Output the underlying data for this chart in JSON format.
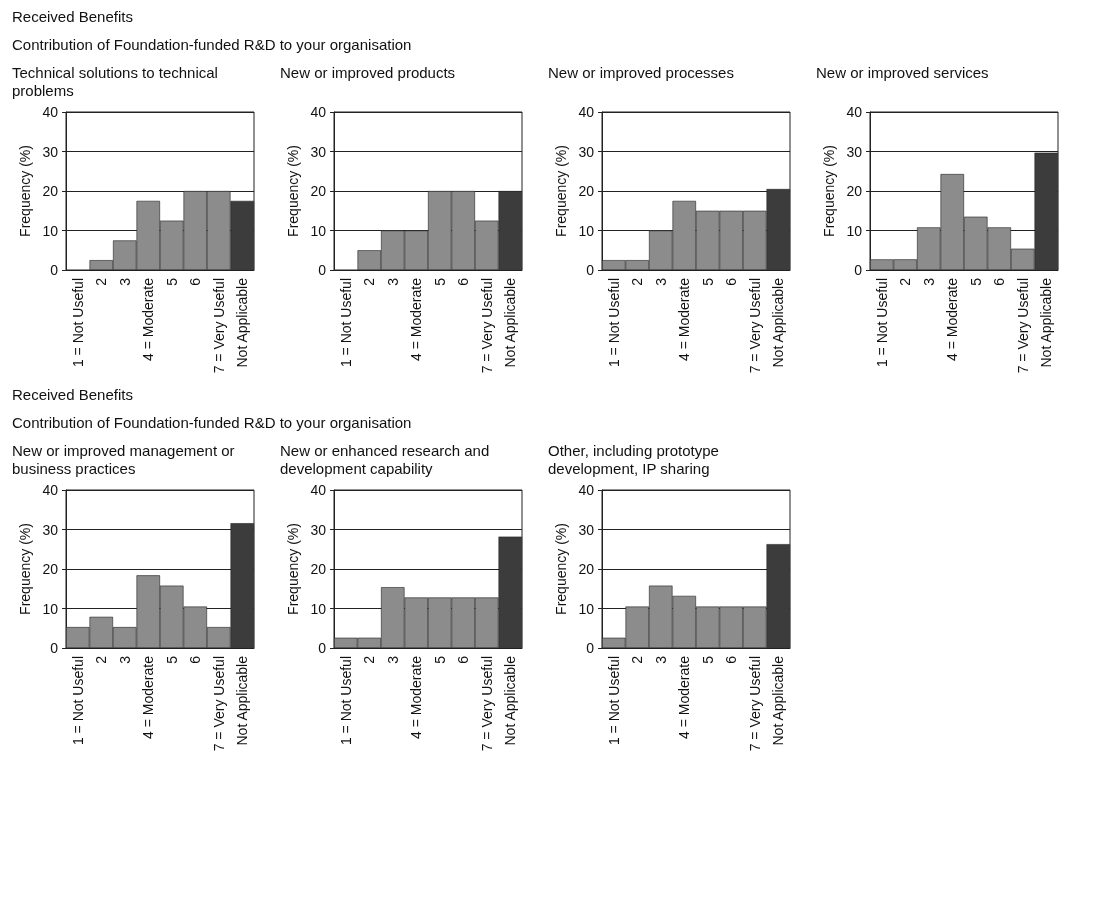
{
  "chart_data": [
    {
      "type": "bar",
      "annotations": [
        "Received Benefits",
        "Contribution of Foundation-funded R&D to your organisation"
      ],
      "title": "Technical solutions to technical problems",
      "ylabel": "Frequency (%)",
      "categories": [
        "1 = Not Useful",
        "2",
        "3",
        "4 = Moderate",
        "5",
        "6",
        "7 = Very Useful",
        "Not Applicable"
      ],
      "values": [
        0,
        2.5,
        7.5,
        17.5,
        12.5,
        20,
        20,
        17.5
      ],
      "colors": [
        "#8c8c8c",
        "#8c8c8c",
        "#8c8c8c",
        "#8c8c8c",
        "#8c8c8c",
        "#8c8c8c",
        "#8c8c8c",
        "#3c3c3c"
      ],
      "ylim": [
        0,
        40
      ],
      "yticks": [
        0,
        10,
        20,
        30,
        40
      ],
      "grid": "y"
    },
    {
      "type": "bar",
      "title": "New or improved products",
      "ylabel": "Frequency (%)",
      "categories": [
        "1 = Not Useful",
        "2",
        "3",
        "4 = Moderate",
        "5",
        "6",
        "7 = Very Useful",
        "Not Applicable"
      ],
      "values": [
        0,
        5,
        10,
        10,
        20,
        20,
        12.5,
        20
      ],
      "colors": [
        "#8c8c8c",
        "#8c8c8c",
        "#8c8c8c",
        "#8c8c8c",
        "#8c8c8c",
        "#8c8c8c",
        "#8c8c8c",
        "#3c3c3c"
      ],
      "ylim": [
        0,
        40
      ],
      "yticks": [
        0,
        10,
        20,
        30,
        40
      ],
      "grid": "y"
    },
    {
      "type": "bar",
      "title": "New or improved processes",
      "ylabel": "Frequency (%)",
      "categories": [
        "1 = Not Useful",
        "2",
        "3",
        "4 = Moderate",
        "5",
        "6",
        "7 = Very Useful",
        "Not Applicable"
      ],
      "values": [
        2.5,
        2.5,
        10,
        17.5,
        15,
        15,
        15,
        20.5
      ],
      "colors": [
        "#8c8c8c",
        "#8c8c8c",
        "#8c8c8c",
        "#8c8c8c",
        "#8c8c8c",
        "#8c8c8c",
        "#8c8c8c",
        "#3c3c3c"
      ],
      "ylim": [
        0,
        40
      ],
      "yticks": [
        0,
        10,
        20,
        30,
        40
      ],
      "grid": "y"
    },
    {
      "type": "bar",
      "title": "New or improved services",
      "ylabel": "Frequency (%)",
      "categories": [
        "1 = Not Useful",
        "2",
        "3",
        "4 = Moderate",
        "5",
        "6",
        "7 = Very Useful",
        "Not Applicable"
      ],
      "values": [
        2.7,
        2.7,
        10.8,
        24.3,
        13.5,
        10.8,
        5.4,
        29.7
      ],
      "colors": [
        "#8c8c8c",
        "#8c8c8c",
        "#8c8c8c",
        "#8c8c8c",
        "#8c8c8c",
        "#8c8c8c",
        "#8c8c8c",
        "#3c3c3c"
      ],
      "ylim": [
        0,
        40
      ],
      "yticks": [
        0,
        10,
        20,
        30,
        40
      ],
      "grid": "y"
    },
    {
      "type": "bar",
      "annotations": [
        "Received Benefits",
        "Contribution of Foundation-funded R&D to your organisation"
      ],
      "title": "New or improved management or business practices",
      "ylabel": "Frequency (%)",
      "categories": [
        "1 = Not Useful",
        "2",
        "3",
        "4 = Moderate",
        "5",
        "6",
        "7 = Very Useful",
        "Not Applicable"
      ],
      "values": [
        5.3,
        7.9,
        5.3,
        18.4,
        15.8,
        10.5,
        5.3,
        31.6
      ],
      "colors": [
        "#8c8c8c",
        "#8c8c8c",
        "#8c8c8c",
        "#8c8c8c",
        "#8c8c8c",
        "#8c8c8c",
        "#8c8c8c",
        "#3c3c3c"
      ],
      "ylim": [
        0,
        40
      ],
      "yticks": [
        0,
        10,
        20,
        30,
        40
      ],
      "grid": "y"
    },
    {
      "type": "bar",
      "title": "New or enhanced research and development capability",
      "ylabel": "Frequency (%)",
      "categories": [
        "1 = Not Useful",
        "2",
        "3",
        "4 = Moderate",
        "5",
        "6",
        "7 = Very Useful",
        "Not Applicable"
      ],
      "values": [
        2.6,
        2.6,
        15.4,
        12.8,
        12.8,
        12.8,
        12.8,
        28.2
      ],
      "colors": [
        "#8c8c8c",
        "#8c8c8c",
        "#8c8c8c",
        "#8c8c8c",
        "#8c8c8c",
        "#8c8c8c",
        "#8c8c8c",
        "#3c3c3c"
      ],
      "ylim": [
        0,
        40
      ],
      "yticks": [
        0,
        10,
        20,
        30,
        40
      ],
      "grid": "y"
    },
    {
      "type": "bar",
      "title": "Other, including prototype development, IP sharing",
      "ylabel": "Frequency (%)",
      "categories": [
        "1 = Not Useful",
        "2",
        "3",
        "4 = Moderate",
        "5",
        "6",
        "7 = Very Useful",
        "Not Applicable"
      ],
      "values": [
        2.6,
        10.5,
        15.8,
        13.2,
        10.5,
        10.5,
        10.5,
        26.3
      ],
      "colors": [
        "#8c8c8c",
        "#8c8c8c",
        "#8c8c8c",
        "#8c8c8c",
        "#8c8c8c",
        "#8c8c8c",
        "#8c8c8c",
        "#3c3c3c"
      ],
      "ylim": [
        0,
        40
      ],
      "yticks": [
        0,
        10,
        20,
        30,
        40
      ],
      "grid": "y"
    }
  ]
}
